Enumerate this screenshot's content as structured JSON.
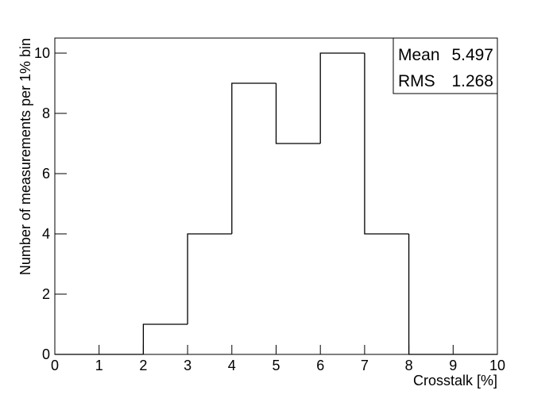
{
  "chart_data": {
    "type": "histogram",
    "xlabel": "Crosstalk [%]",
    "ylabel": "Number of measurements per 1% bin",
    "bins": [
      0,
      1,
      2,
      3,
      4,
      5,
      6,
      7,
      8,
      9,
      10
    ],
    "values": [
      0,
      0,
      1,
      4,
      9,
      7,
      10,
      4,
      0,
      0
    ],
    "color": "#000000",
    "xlim": [
      0,
      10
    ],
    "xticks": [
      0,
      1,
      2,
      3,
      4,
      5,
      6,
      7,
      8,
      9,
      10
    ],
    "ylim": [
      0,
      10.5
    ],
    "yticks": [
      0,
      2,
      4,
      6,
      8,
      10
    ],
    "stats": [
      {
        "label": "Mean",
        "value": 5.497
      },
      {
        "label": "RMS",
        "value": 1.268
      }
    ]
  }
}
